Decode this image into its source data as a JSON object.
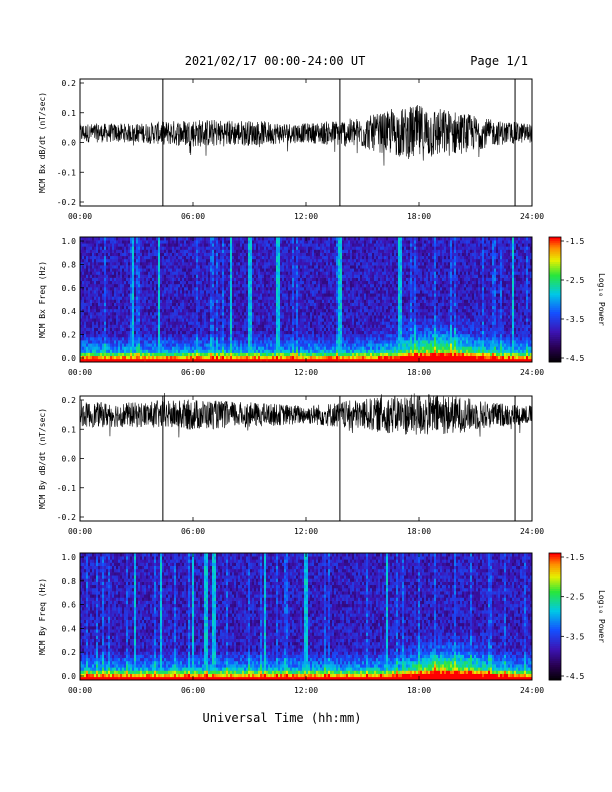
{
  "header": {
    "title": "2021/02/17  00:00-24:00 UT",
    "page": "Page 1/1"
  },
  "footer": {
    "xlabel": "Universal Time (hh:mm)"
  },
  "colorbar": {
    "label": "Log₁₀ Power",
    "ticks": [
      "-1.5",
      "-2.5",
      "-3.5",
      "-4.5"
    ],
    "range": [
      -4.5,
      -1.5
    ]
  },
  "x_ticks": [
    "00:00",
    "06:00",
    "12:00",
    "18:00",
    "24:00"
  ],
  "chart_data": [
    {
      "type": "line",
      "ylabel": "MCM Bx dB/dt (nT/sec)",
      "x_range_hours": [
        0,
        24
      ],
      "ylim": [
        -0.2,
        0.2
      ],
      "y_ticks": [
        "0.2",
        "0.1",
        "0.0",
        "-0.1",
        "-0.2"
      ],
      "baseline": 0.03,
      "envelope": [
        {
          "hour": 0,
          "amp": 0.03
        },
        {
          "hour": 3,
          "amp": 0.03
        },
        {
          "hour": 6,
          "amp": 0.045
        },
        {
          "hour": 9,
          "amp": 0.04
        },
        {
          "hour": 12,
          "amp": 0.03
        },
        {
          "hour": 15,
          "amp": 0.05
        },
        {
          "hour": 18,
          "amp": 0.09
        },
        {
          "hour": 20,
          "amp": 0.07
        },
        {
          "hour": 22,
          "amp": 0.04
        },
        {
          "hour": 24,
          "amp": 0.03
        }
      ],
      "spikes_hours": [
        4.4,
        13.8,
        23.1
      ]
    },
    {
      "type": "heatmap",
      "ylabel": "MCM Bx Freq (Hz)",
      "x_range_hours": [
        0,
        24
      ],
      "ylim": [
        0,
        1.0
      ],
      "y_ticks": [
        "1.0",
        "0.8",
        "0.6",
        "0.4",
        "0.2",
        "0.0"
      ],
      "z_range": [
        -4.5,
        -1.5
      ],
      "bright_band_hours": [
        2.8,
        4.2,
        8.0,
        9.0,
        10.5,
        13.8,
        17.0,
        23.0
      ],
      "activity_peak_hour": 19
    },
    {
      "type": "line",
      "ylabel": "MCM By dB/dt (nT/sec)",
      "x_range_hours": [
        0,
        24
      ],
      "ylim": [
        -0.2,
        0.2
      ],
      "y_ticks": [
        "0.2",
        "0.1",
        "0.0",
        "-0.1",
        "-0.2"
      ],
      "baseline": 0.14,
      "envelope": [
        {
          "hour": 0,
          "amp": 0.04
        },
        {
          "hour": 3,
          "amp": 0.04
        },
        {
          "hour": 6,
          "amp": 0.05
        },
        {
          "hour": 9,
          "amp": 0.04
        },
        {
          "hour": 12,
          "amp": 0.03
        },
        {
          "hour": 15,
          "amp": 0.05
        },
        {
          "hour": 18,
          "amp": 0.07
        },
        {
          "hour": 20,
          "amp": 0.06
        },
        {
          "hour": 22,
          "amp": 0.04
        },
        {
          "hour": 24,
          "amp": 0.03
        }
      ],
      "spikes_hours": [
        4.4,
        13.8,
        23.1
      ]
    },
    {
      "type": "heatmap",
      "ylabel": "MCM By Freq (Hz)",
      "x_range_hours": [
        0,
        24
      ],
      "ylim": [
        0,
        1.0
      ],
      "y_ticks": [
        "1.0",
        "0.8",
        "0.6",
        "0.4",
        "0.2",
        "0.0"
      ],
      "z_range": [
        -4.5,
        -1.5
      ],
      "bright_band_hours": [
        2.9,
        4.3,
        6.0,
        6.7,
        7.1,
        9.8,
        12.0,
        16.3
      ],
      "activity_peak_hour": 19.5
    }
  ]
}
